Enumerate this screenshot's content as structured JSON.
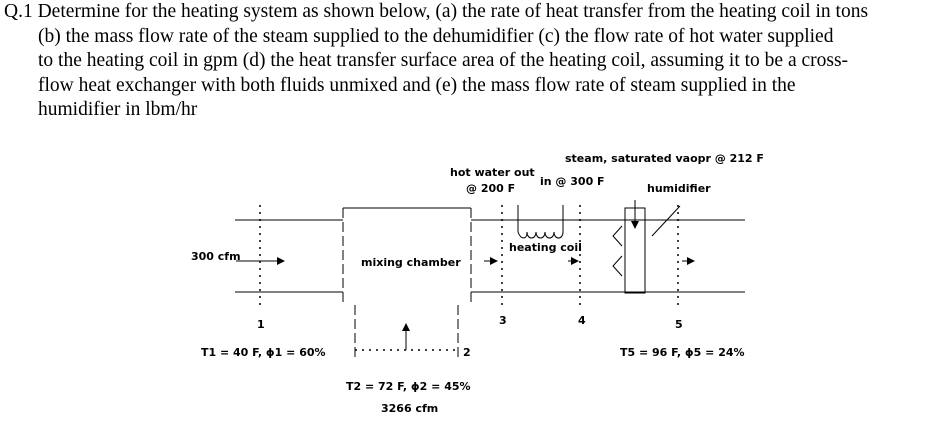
{
  "question": {
    "lines": [
      "Q.1 Determine for the heating system as shown below, (a) the rate of heat transfer from the heating coil in tons",
      "(b) the mass flow rate of the steam supplied to the dehumidifier (c) the flow rate of hot water supplied",
      "to the heating coil in gpm (d) the heat transfer surface area of the heating coil, assuming it to be a cross-",
      "flow heat exchanger with both fluids unmixed and (e) the mass flow rate of steam supplied in the",
      "humidifier in lbm/hr"
    ]
  },
  "diagram": {
    "hot_water_out": "hot water out",
    "hot_water_out_temp": "@ 200 F",
    "steam": "steam, saturated vaopr @ 212 F",
    "hot_water_in": "in @ 300 F",
    "humidifier": "humidifier",
    "heating_coil": "heating coil",
    "inlet_flow": "300 cfm",
    "mixing_chamber": "mixing chamber",
    "station_1": "1",
    "station_2": "2",
    "station_3": "3",
    "station_4": "4",
    "station_5": "5",
    "state_1": "T1 = 40 F, ϕ1 = 60%",
    "state_5": "T5 = 96 F, ϕ5 = 24%",
    "state_2": "T2 = 72 F, ϕ2 = 45%",
    "flow_2": "3266 cfm"
  }
}
